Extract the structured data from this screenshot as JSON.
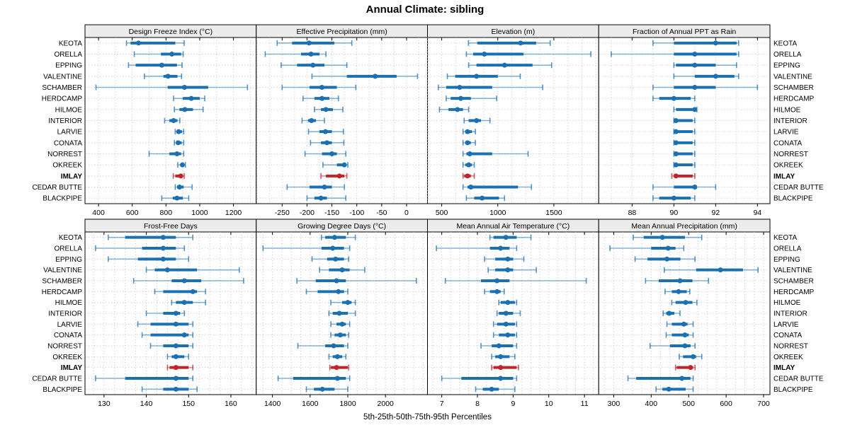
{
  "title": "Annual Climate: sibling",
  "caption": "5th-25th-50th-75th-95th Percentiles",
  "colors": {
    "series": "#1C70B0",
    "highlight": "#BE2428",
    "strip_bg": "#ECECEC",
    "panel_bg": "#FFFFFF",
    "grid": "#C4C4C4",
    "border": "#000000"
  },
  "stations": [
    "KEOTA",
    "ORELLA",
    "EPPING",
    "VALENTINE",
    "SCHAMBER",
    "HERDCAMP",
    "HILMOE",
    "INTERIOR",
    "LARVIE",
    "CONATA",
    "NORREST",
    "OKREEK",
    "IMLAY",
    "CEDAR BUTTE",
    "BLACKPIPE"
  ],
  "highlight_station": "IMLAY",
  "chart_data": {
    "type": "percentile-interval-dotplot",
    "percentiles": [
      5,
      25,
      50,
      75,
      95
    ],
    "legend_position": "none",
    "grid": "dotted",
    "panels": [
      {
        "title": "Design Freeze Index (°C)",
        "row": 0,
        "col": 0,
        "xlim": [
          320,
          1335
        ],
        "ticks": [
          400,
          600,
          800,
          1000,
          1200
        ],
        "grid_step": 100,
        "values": [
          [
            566,
            590,
            637,
            855,
            908
          ],
          [
            612,
            770,
            835,
            890,
            902
          ],
          [
            578,
            620,
            775,
            865,
            895
          ],
          [
            672,
            785,
            812,
            868,
            892
          ],
          [
            385,
            810,
            910,
            1050,
            1283
          ],
          [
            845,
            900,
            950,
            1000,
            1030
          ],
          [
            850,
            880,
            912,
            960,
            1020
          ],
          [
            792,
            820,
            845,
            868,
            882
          ],
          [
            855,
            865,
            875,
            895,
            905
          ],
          [
            850,
            860,
            872,
            893,
            905
          ],
          [
            700,
            820,
            865,
            890,
            905
          ],
          [
            870,
            885,
            897,
            910,
            915
          ],
          [
            843,
            855,
            888,
            900,
            908
          ],
          [
            855,
            866,
            880,
            905,
            955
          ],
          [
            775,
            840,
            865,
            900,
            935
          ]
        ]
      },
      {
        "title": "Effective Precipitation (mm)",
        "row": 0,
        "col": 1,
        "xlim": [
          -302,
          42
        ],
        "ticks": [
          -250,
          -200,
          -150,
          -100,
          -50,
          0
        ],
        "grid_step": 25,
        "values": [
          [
            -260,
            -230,
            -196,
            -145,
            -110
          ],
          [
            -284,
            -212,
            -192,
            -175,
            -162
          ],
          [
            -252,
            -220,
            -188,
            -165,
            -120
          ],
          [
            -190,
            -120,
            -63,
            -20,
            22
          ],
          [
            -250,
            -195,
            -170,
            -140,
            -102
          ],
          [
            -208,
            -185,
            -170,
            -155,
            -137
          ],
          [
            -185,
            -172,
            -162,
            -148,
            -128
          ],
          [
            -210,
            -198,
            -191,
            -182,
            -165
          ],
          [
            -197,
            -175,
            -163,
            -150,
            -127
          ],
          [
            -193,
            -172,
            -160,
            -150,
            -126
          ],
          [
            -204,
            -170,
            -150,
            -140,
            -122
          ],
          [
            -168,
            -140,
            -125,
            -122,
            -118
          ],
          [
            -172,
            -162,
            -135,
            -125,
            -120
          ],
          [
            -240,
            -195,
            -165,
            -150,
            -125
          ],
          [
            -200,
            -185,
            -172,
            -160,
            -122
          ]
        ]
      },
      {
        "title": "Elevation (m)",
        "row": 0,
        "col": 2,
        "xlim": [
          373,
          1900
        ],
        "ticks": [
          500,
          1000,
          1500
        ],
        "grid_step": 125,
        "values": [
          [
            738,
            817,
            1203,
            1342,
            1467
          ],
          [
            720,
            780,
            880,
            1230,
            1830
          ],
          [
            740,
            810,
            1060,
            1310,
            1480
          ],
          [
            550,
            620,
            810,
            1000,
            1200
          ],
          [
            470,
            540,
            660,
            950,
            1400
          ],
          [
            540,
            580,
            670,
            760,
            990
          ],
          [
            480,
            560,
            640,
            690,
            740
          ],
          [
            700,
            740,
            810,
            850,
            930
          ],
          [
            690,
            710,
            730,
            770,
            800
          ],
          [
            690,
            710,
            730,
            760,
            800
          ],
          [
            690,
            720,
            750,
            950,
            1270
          ],
          [
            690,
            710,
            740,
            770,
            790
          ],
          [
            690,
            700,
            730,
            760,
            790
          ],
          [
            690,
            730,
            760,
            1180,
            1300
          ],
          [
            720,
            790,
            860,
            1010,
            1060
          ]
        ]
      },
      {
        "title": "Fraction of Annual PPT as Rain",
        "row": 0,
        "col": 3,
        "xlim": [
          86.4,
          94.6
        ],
        "ticks": [
          88,
          90,
          92,
          94
        ],
        "grid_step": 1,
        "values": [
          [
            89,
            90,
            92,
            93,
            93.1
          ],
          [
            87,
            90,
            91,
            93,
            93.1
          ],
          [
            90,
            90.1,
            91,
            92,
            93
          ],
          [
            90,
            91,
            92,
            92.9,
            93.1
          ],
          [
            89,
            90,
            91,
            92,
            94
          ],
          [
            89,
            89.3,
            90,
            90.8,
            91
          ],
          [
            90,
            90.1,
            91,
            91,
            91.1
          ],
          [
            90,
            90.05,
            90.1,
            90.9,
            91
          ],
          [
            90,
            90.05,
            90.1,
            90.9,
            91
          ],
          [
            90,
            90.05,
            90.1,
            90.9,
            91
          ],
          [
            90,
            90.05,
            90.1,
            90.9,
            91
          ],
          [
            90,
            90.05,
            90.1,
            90.9,
            91
          ],
          [
            89.9,
            90,
            90.1,
            90.9,
            91
          ],
          [
            89,
            90,
            91,
            91.1,
            92
          ],
          [
            89,
            89.3,
            90,
            90.8,
            91
          ]
        ]
      },
      {
        "title": "Frost-Free Days",
        "row": 1,
        "col": 0,
        "xlim": [
          125.5,
          166
        ],
        "ticks": [
          130,
          140,
          150,
          160
        ],
        "grid_step": 2.5,
        "values": [
          [
            131,
            135,
            144,
            147,
            151
          ],
          [
            128,
            139,
            144,
            147,
            149
          ],
          [
            131,
            138,
            144,
            147,
            150
          ],
          [
            140,
            142,
            145,
            152,
            162
          ],
          [
            137,
            146,
            149,
            153,
            163
          ],
          [
            142,
            144,
            151,
            152,
            154
          ],
          [
            146,
            147,
            149,
            151,
            154
          ],
          [
            140,
            144,
            147,
            148,
            149
          ],
          [
            138,
            141,
            147,
            150,
            151
          ],
          [
            139,
            141,
            149,
            150,
            151
          ],
          [
            141,
            144,
            147,
            150,
            151
          ],
          [
            145,
            146,
            147,
            149,
            150
          ],
          [
            145,
            145.5,
            147,
            150,
            151
          ],
          [
            128,
            135,
            147,
            150,
            151
          ],
          [
            139,
            144,
            147,
            150,
            152
          ]
        ]
      },
      {
        "title": "Growing Degree Days (°C)",
        "row": 1,
        "col": 1,
        "xlim": [
          1314,
          2223
        ],
        "ticks": [
          1400,
          1600,
          1800,
          2000
        ],
        "grid_step": 50,
        "values": [
          [
            1660,
            1680,
            1730,
            1790,
            1840
          ],
          [
            1350,
            1660,
            1720,
            1780,
            1810
          ],
          [
            1610,
            1690,
            1735,
            1780,
            1805
          ],
          [
            1650,
            1700,
            1770,
            1810,
            1890
          ],
          [
            1530,
            1630,
            1740,
            1790,
            2164
          ],
          [
            1580,
            1640,
            1750,
            1780,
            1800
          ],
          [
            1710,
            1770,
            1800,
            1820,
            1840
          ],
          [
            1700,
            1720,
            1755,
            1800,
            1840
          ],
          [
            1710,
            1740,
            1770,
            1790,
            1810
          ],
          [
            1710,
            1730,
            1760,
            1790,
            1805
          ],
          [
            1535,
            1680,
            1725,
            1780,
            1800
          ],
          [
            1700,
            1720,
            1745,
            1770,
            1790
          ],
          [
            1705,
            1710,
            1740,
            1800,
            1805
          ],
          [
            1430,
            1510,
            1745,
            1790,
            1810
          ],
          [
            1580,
            1620,
            1665,
            1730,
            1800
          ]
        ]
      },
      {
        "title": "Mean Annual Air Temperature (°C)",
        "row": 1,
        "col": 2,
        "xlim": [
          6.6,
          11.4
        ],
        "ticks": [
          7,
          8,
          9,
          10,
          11
        ],
        "grid_step": 0.25,
        "values": [
          [
            8.35,
            8.45,
            8.8,
            9.1,
            9.5
          ],
          [
            6.85,
            8.35,
            8.65,
            8.9,
            9.1
          ],
          [
            8.2,
            8.5,
            8.85,
            9.0,
            9.3
          ],
          [
            8.3,
            8.5,
            8.85,
            9.0,
            9.65
          ],
          [
            7.1,
            8.1,
            8.55,
            8.9,
            11.05
          ],
          [
            8.2,
            8.35,
            8.55,
            8.65,
            8.75
          ],
          [
            8.6,
            8.65,
            8.85,
            9.05,
            9.1
          ],
          [
            8.55,
            8.6,
            8.8,
            9.0,
            9.2
          ],
          [
            8.45,
            8.55,
            8.8,
            9.05,
            9.1
          ],
          [
            8.45,
            8.6,
            8.85,
            9.05,
            9.1
          ],
          [
            8.1,
            8.4,
            8.6,
            9.0,
            9.1
          ],
          [
            8.4,
            8.5,
            8.65,
            8.9,
            9.05
          ],
          [
            8.4,
            8.45,
            8.65,
            9.1,
            9.15
          ],
          [
            7.0,
            7.55,
            8.65,
            9.0,
            9.1
          ],
          [
            7.95,
            8.15,
            8.4,
            8.6,
            9.05
          ]
        ]
      },
      {
        "title": "Mean Annual Precipitation (mm)",
        "row": 1,
        "col": 3,
        "xlim": [
          260,
          717
        ],
        "ticks": [
          300,
          400,
          500,
          600,
          700
        ],
        "grid_step": 25,
        "values": [
          [
            352,
            380,
            430,
            490,
            535
          ],
          [
            290,
            400,
            445,
            465,
            487
          ],
          [
            357,
            390,
            442,
            478,
            517
          ],
          [
            435,
            520,
            585,
            645,
            685
          ],
          [
            385,
            420,
            477,
            510,
            553
          ],
          [
            437,
            455,
            473,
            495,
            503
          ],
          [
            455,
            465,
            492,
            510,
            522
          ],
          [
            432,
            440,
            448,
            462,
            477
          ],
          [
            442,
            455,
            487,
            497,
            512
          ],
          [
            440,
            455,
            490,
            500,
            512
          ],
          [
            397,
            450,
            490,
            505,
            517
          ],
          [
            475,
            485,
            512,
            520,
            535
          ],
          [
            465,
            468,
            505,
            512,
            517
          ],
          [
            338,
            360,
            482,
            505,
            512
          ],
          [
            413,
            430,
            447,
            492,
            512
          ]
        ]
      }
    ]
  }
}
